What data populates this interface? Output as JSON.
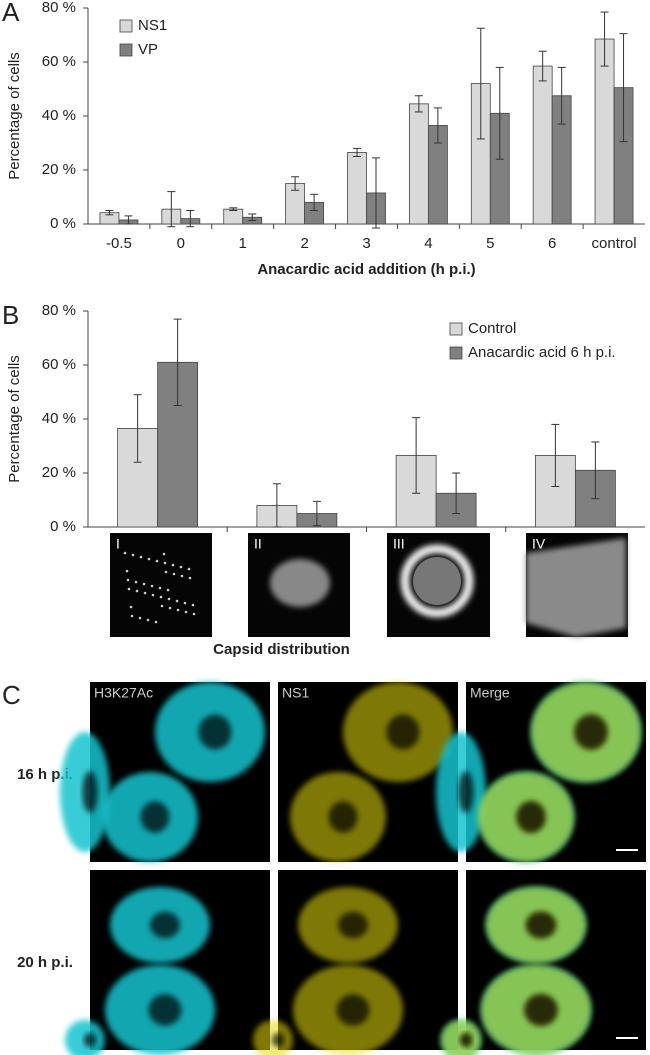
{
  "chart_data": [
    {
      "type": "bar",
      "panel_label": "A",
      "y_label": "Percentage of cells",
      "x_label": "Anacardic acid addition (h p.i.)",
      "categories": [
        "-0.5",
        "0",
        "1",
        "2",
        "3",
        "4",
        "5",
        "6",
        "control"
      ],
      "series": [
        {
          "name": "NS1",
          "color": "#d9d9d9",
          "values": [
            4.2,
            5.5,
            5.5,
            15,
            26.5,
            44.5,
            52,
            58.5,
            68.5
          ],
          "errors": [
            0.8,
            6.5,
            0.5,
            2.5,
            1.5,
            3,
            20.5,
            5.5,
            10
          ]
        },
        {
          "name": "VP",
          "color": "#808080",
          "values": [
            1.5,
            2,
            2.5,
            8,
            11.5,
            36.5,
            41,
            47.5,
            50.5
          ],
          "errors": [
            1.5,
            3,
            1.2,
            3,
            13,
            6.5,
            17,
            10.5,
            20
          ]
        }
      ],
      "ylim": [
        0,
        80
      ],
      "yticks": [
        {
          "value": 0,
          "label": "0 %"
        },
        {
          "value": 20,
          "label": "20 %"
        },
        {
          "value": 40,
          "label": "40 %"
        },
        {
          "value": 60,
          "label": "60 %"
        },
        {
          "value": 80,
          "label": "80 %"
        }
      ],
      "legend": "upper left"
    },
    {
      "type": "bar",
      "panel_label": "B",
      "y_label": "Percentage of cells",
      "x_label": "Capsid distribution",
      "categories": [
        "I",
        "II",
        "III",
        "IV"
      ],
      "series": [
        {
          "name": "Control",
          "color": "#d9d9d9",
          "values": [
            36.5,
            8,
            26.5,
            26.5
          ],
          "errors": [
            12.5,
            8,
            14,
            11.5
          ]
        },
        {
          "name": "Anacardic acid 6 h p.i.",
          "color": "#808080",
          "values": [
            61,
            5,
            12.5,
            21
          ],
          "errors": [
            16,
            4.5,
            7.5,
            10.5
          ]
        }
      ],
      "ylim": [
        0,
        80
      ],
      "yticks": [
        {
          "value": 0,
          "label": "0 %"
        },
        {
          "value": 20,
          "label": "20 %"
        },
        {
          "value": 40,
          "label": "40 %"
        },
        {
          "value": 60,
          "label": "60 %"
        },
        {
          "value": 80,
          "label": "80 %"
        }
      ],
      "legend": "upper right"
    }
  ],
  "panel_c": {
    "label": "C",
    "columns": [
      "H3K27Ac",
      "NS1",
      "Merge"
    ],
    "rows": [
      "16 h p.i.",
      "20 h p.i."
    ]
  }
}
